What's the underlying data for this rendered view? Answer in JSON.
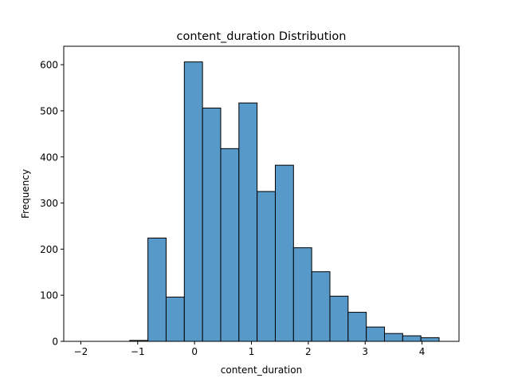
{
  "chart_data": {
    "type": "bar",
    "title": "content_duration Distribution",
    "xlabel": "content_duration",
    "ylabel": "Frequency",
    "xlim": [
      -2.3,
      4.65
    ],
    "ylim": [
      0,
      640
    ],
    "xticks": [
      -2,
      -1,
      0,
      1,
      2,
      3,
      4
    ],
    "yticks": [
      0,
      100,
      200,
      300,
      400,
      500,
      600
    ],
    "grid": false,
    "bar_color": "#5799c9",
    "bar_edge_color": "#000000",
    "bins": [
      {
        "x0": -2.1,
        "x1": -1.78,
        "count": 0
      },
      {
        "x0": -1.78,
        "x1": -1.46,
        "count": 0
      },
      {
        "x0": -1.46,
        "x1": -1.14,
        "count": 0
      },
      {
        "x0": -1.14,
        "x1": -0.82,
        "count": 2
      },
      {
        "x0": -0.82,
        "x1": -0.5,
        "count": 224
      },
      {
        "x0": -0.5,
        "x1": -0.18,
        "count": 96
      },
      {
        "x0": -0.18,
        "x1": 0.14,
        "count": 606
      },
      {
        "x0": 0.14,
        "x1": 0.46,
        "count": 506
      },
      {
        "x0": 0.46,
        "x1": 0.78,
        "count": 418
      },
      {
        "x0": 0.78,
        "x1": 1.1,
        "count": 517
      },
      {
        "x0": 1.1,
        "x1": 1.42,
        "count": 325
      },
      {
        "x0": 1.42,
        "x1": 1.74,
        "count": 382
      },
      {
        "x0": 1.74,
        "x1": 2.06,
        "count": 203
      },
      {
        "x0": 2.06,
        "x1": 2.38,
        "count": 151
      },
      {
        "x0": 2.38,
        "x1": 2.7,
        "count": 98
      },
      {
        "x0": 2.7,
        "x1": 3.02,
        "count": 63
      },
      {
        "x0": 3.02,
        "x1": 3.34,
        "count": 31
      },
      {
        "x0": 3.34,
        "x1": 3.66,
        "count": 17
      },
      {
        "x0": 3.66,
        "x1": 3.98,
        "count": 12
      },
      {
        "x0": 3.98,
        "x1": 4.3,
        "count": 8
      }
    ]
  }
}
